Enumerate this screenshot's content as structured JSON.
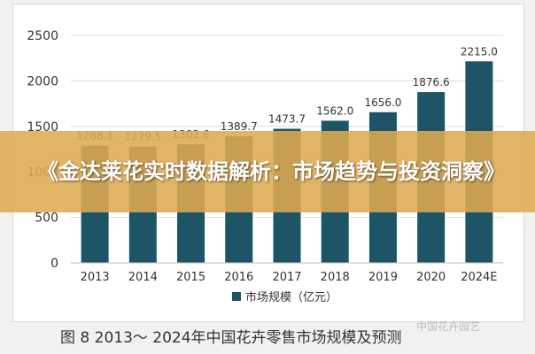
{
  "chart_data": {
    "type": "bar",
    "categories": [
      "2013",
      "2014",
      "2015",
      "2016",
      "2017",
      "2018",
      "2019",
      "2020",
      "2024E"
    ],
    "series": [
      {
        "name": "市场规模（亿元）",
        "values": [
          1288.1,
          1279.5,
          1302.6,
          1389.7,
          1473.7,
          1562.0,
          1656.0,
          1876.6,
          2215.0
        ],
        "labels": [
          "1288.1",
          "1279.5",
          "1302.6",
          "1389.7",
          "1473.7",
          "1562.0",
          "1656.0",
          "1876.6",
          "2215.0"
        ]
      }
    ],
    "yticks": [
      0,
      500,
      1000,
      1500,
      2000,
      2500
    ],
    "ylim": [
      0,
      2500
    ],
    "grid": true,
    "legend_position": "bottom-center",
    "bar_color": "#1e5468",
    "caption": "图 8   2013～ 2024年中国花卉零售市场规模及预测"
  },
  "banner": {
    "text": "《金达莱花实时数据解析：市场趋势与投资洞察》"
  },
  "watermark": {
    "text": "中国花卉园艺"
  }
}
